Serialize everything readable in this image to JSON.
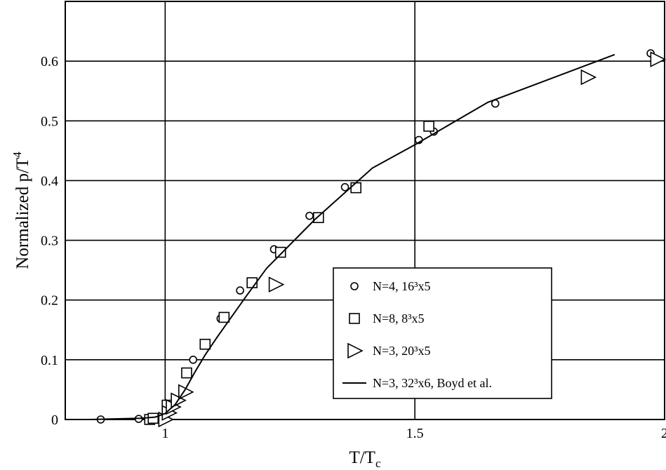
{
  "chart_data": {
    "type": "scatter",
    "xlabel": "T/T",
    "xlabel_sub": "c",
    "ylabel": "Normalized p/T",
    "ylabel_sup": "4",
    "xlim": [
      0.8,
      2.0
    ],
    "ylim": [
      0,
      0.7
    ],
    "xticks": [
      1,
      1.5,
      2
    ],
    "yticks": [
      0,
      0.1,
      0.2,
      0.3,
      0.4,
      0.5,
      0.6
    ],
    "grid": true,
    "legend": "lower right",
    "series": [
      {
        "name": "N=4, 16³x5",
        "marker": "circle",
        "color": "#000000",
        "x": [
          0.871,
          0.947,
          1.008,
          1.056,
          1.111,
          1.15,
          1.218,
          1.289,
          1.36,
          1.508,
          1.538,
          1.661,
          1.972
        ],
        "values": [
          0,
          0.001,
          0.018,
          0.1,
          0.169,
          0.216,
          0.285,
          0.341,
          0.389,
          0.468,
          0.482,
          0.529,
          0.613
        ]
      },
      {
        "name": "N=8, 8³x5",
        "marker": "square",
        "color": "#000000",
        "x": [
          0.969,
          0.976,
          1.004,
          1.043,
          1.08,
          1.118,
          1.174,
          1.231,
          1.307,
          1.382,
          1.528
        ],
        "values": [
          0,
          0.002,
          0.024,
          0.078,
          0.126,
          0.171,
          0.229,
          0.28,
          0.338,
          0.388,
          0.491
        ]
      },
      {
        "name": "N=3, 20³x5",
        "marker": "triangle",
        "color": "#000000",
        "x": [
          1.0,
          1.007,
          1.015,
          1.025,
          1.04,
          1.221,
          1.846,
          1.985
        ],
        "values": [
          0,
          0.011,
          0.021,
          0.032,
          0.046,
          0.226,
          0.573,
          0.603
        ]
      },
      {
        "name": "N=3, 32³x6, Boyd et al.",
        "marker": "line",
        "color": "#000000",
        "x": [
          0.8,
          0.85,
          0.9,
          0.95,
          0.98,
          1.0,
          1.02,
          1.04,
          1.06,
          1.08,
          1.105,
          1.162,
          1.203,
          1.3,
          1.415,
          1.5,
          1.646,
          1.9
        ],
        "values": [
          0,
          0,
          0.001,
          0.002,
          0.004,
          0.01,
          0.025,
          0.05,
          0.08,
          0.108,
          0.139,
          0.206,
          0.253,
          0.335,
          0.421,
          0.46,
          0.531,
          0.611
        ]
      }
    ]
  }
}
